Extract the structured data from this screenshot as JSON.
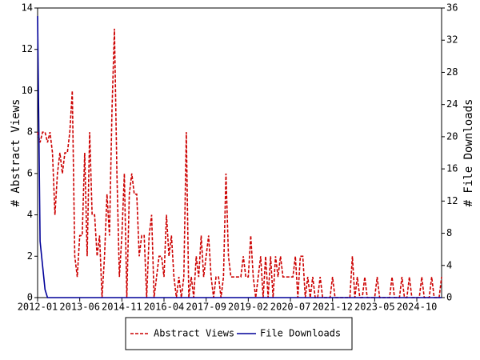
{
  "chart_data": {
    "type": "line",
    "y_label": "# Abstract Views",
    "y2_label": "# File Downloads",
    "x": [
      "2012-01",
      "2012-02",
      "2012-03",
      "2012-04",
      "2012-05",
      "2012-06",
      "2012-07",
      "2012-08",
      "2012-09",
      "2012-10",
      "2012-11",
      "2012-12",
      "2013-01",
      "2013-02",
      "2013-03",
      "2013-04",
      "2013-05",
      "2013-06",
      "2013-07",
      "2013-08",
      "2013-09",
      "2013-10",
      "2013-11",
      "2013-12",
      "2014-01",
      "2014-02",
      "2014-03",
      "2014-04",
      "2014-05",
      "2014-06",
      "2014-07",
      "2014-08",
      "2014-09",
      "2014-10",
      "2014-11",
      "2014-12",
      "2015-01",
      "2015-02",
      "2015-03",
      "2015-04",
      "2015-05",
      "2015-06",
      "2015-07",
      "2015-08",
      "2015-09",
      "2015-10",
      "2015-11",
      "2015-12",
      "2016-01",
      "2016-02",
      "2016-03",
      "2016-04",
      "2016-05",
      "2016-06",
      "2016-07",
      "2016-08",
      "2016-09",
      "2016-10",
      "2016-11",
      "2016-12",
      "2017-01",
      "2017-02",
      "2017-03",
      "2017-04",
      "2017-05",
      "2017-06",
      "2017-07",
      "2017-08",
      "2017-09",
      "2017-10",
      "2017-11",
      "2017-12",
      "2018-01",
      "2018-02",
      "2018-03",
      "2018-04",
      "2018-05",
      "2018-06",
      "2018-07",
      "2018-08",
      "2018-09",
      "2018-10",
      "2018-11",
      "2018-12",
      "2019-01",
      "2019-02",
      "2019-03",
      "2019-04",
      "2019-05",
      "2019-06",
      "2019-07",
      "2019-08",
      "2019-09",
      "2019-10",
      "2019-11",
      "2019-12",
      "2020-01",
      "2020-02",
      "2020-03",
      "2020-04",
      "2020-05",
      "2020-06",
      "2020-07",
      "2020-08",
      "2020-09",
      "2020-10",
      "2020-11",
      "2020-12",
      "2021-01",
      "2021-02",
      "2021-03",
      "2021-04",
      "2021-05",
      "2021-06",
      "2021-07",
      "2021-08",
      "2021-09",
      "2021-10",
      "2021-11",
      "2021-12",
      "2022-01",
      "2022-02",
      "2022-03",
      "2022-04",
      "2022-05",
      "2022-06",
      "2022-07",
      "2022-08",
      "2022-09",
      "2022-10",
      "2022-11",
      "2022-12",
      "2023-01",
      "2023-02",
      "2023-03",
      "2023-04",
      "2023-05",
      "2023-06",
      "2023-07",
      "2023-08",
      "2023-09",
      "2023-10",
      "2023-11",
      "2023-12",
      "2024-01",
      "2024-02",
      "2024-03",
      "2024-04",
      "2024-05",
      "2024-06",
      "2024-07",
      "2024-08",
      "2024-09",
      "2024-10",
      "2024-11",
      "2024-12",
      "2025-01",
      "2025-02",
      "2025-03",
      "2025-04",
      "2025-05",
      "2025-06",
      "2025-07",
      "2025-08"
    ],
    "xticks": [
      "2012-01",
      "2013-06",
      "2014-11",
      "2016-04",
      "2017-09",
      "2019-02",
      "2020-07",
      "2021-12",
      "2023-05",
      "2024-10"
    ],
    "ylim": [
      0,
      14
    ],
    "yticks": [
      0,
      2,
      4,
      6,
      8,
      10,
      12,
      14
    ],
    "y2lim": [
      0,
      36
    ],
    "y2ticks": [
      0,
      4,
      8,
      12,
      16,
      20,
      24,
      28,
      32,
      36
    ],
    "legend": "bottom",
    "series": [
      {
        "name": "Abstract Views",
        "color": "#cc0000",
        "dashed": true,
        "values": [
          8,
          7.5,
          8,
          8,
          7.5,
          8,
          7,
          4,
          6,
          7,
          6,
          7,
          7,
          8,
          10,
          2,
          1,
          3,
          3,
          7,
          2,
          8,
          4,
          4,
          2,
          3,
          0,
          2,
          5,
          3,
          9,
          13,
          6,
          1,
          3,
          6,
          0,
          5,
          6,
          5,
          5,
          2,
          3,
          3,
          0,
          3,
          4,
          0,
          1,
          2,
          2,
          1,
          4,
          2,
          3,
          1,
          0,
          1,
          0,
          1,
          8,
          0,
          1,
          0,
          2,
          1,
          3,
          1,
          2,
          3,
          1,
          0,
          1,
          1,
          0,
          1,
          6,
          2,
          1,
          1,
          1,
          1,
          1,
          2,
          1,
          1,
          3,
          1,
          0,
          1,
          2,
          0,
          2,
          0,
          2,
          0,
          2,
          1,
          2,
          1,
          1,
          1,
          1,
          1,
          2,
          0,
          2,
          2,
          0,
          1,
          0,
          1,
          0,
          0,
          1,
          0,
          0,
          0,
          0,
          1,
          0,
          0,
          0,
          0,
          0,
          0,
          0,
          2,
          0,
          1,
          0,
          0,
          1,
          0,
          0,
          0,
          0,
          1,
          0,
          0,
          0,
          0,
          0,
          1,
          0,
          0,
          0,
          1,
          0,
          0,
          1,
          0,
          0,
          0,
          0,
          1,
          0,
          0,
          0,
          1,
          0,
          0,
          0,
          1
        ]
      },
      {
        "name": "File Downloads",
        "color": "#000099",
        "dashed": false,
        "axis": "y2",
        "values": [
          35,
          7,
          4,
          1,
          0,
          0,
          0,
          0,
          0,
          0,
          0,
          0,
          0,
          0,
          0,
          0,
          0,
          0,
          0,
          0,
          0,
          0,
          0,
          0,
          0,
          0,
          0,
          0,
          0,
          0,
          0,
          0,
          0,
          0,
          0,
          0,
          0,
          0,
          0,
          0,
          0,
          0,
          0,
          0,
          0,
          0,
          0,
          0,
          0,
          0,
          0,
          0,
          0,
          0,
          0,
          0,
          0,
          0,
          0,
          0,
          0,
          0,
          0,
          0,
          0,
          0,
          0,
          0,
          0,
          0,
          0,
          0,
          0,
          0,
          0,
          0,
          0,
          0,
          0,
          0,
          0,
          0,
          0,
          0,
          0,
          0,
          0,
          0,
          0,
          0,
          0,
          0,
          0,
          0,
          0,
          0,
          0,
          0,
          0,
          0,
          0,
          0,
          0,
          0,
          0,
          0,
          0,
          0,
          0,
          0,
          0,
          0,
          0,
          0,
          0,
          0,
          0,
          0,
          0,
          0,
          0,
          0,
          0,
          0,
          0,
          0,
          0,
          0,
          0,
          0,
          0,
          0,
          0,
          0,
          0,
          0,
          0,
          0,
          0,
          0,
          0,
          0,
          0,
          0,
          0,
          0,
          0,
          0,
          0,
          0,
          0,
          0,
          0,
          0,
          0,
          0,
          0,
          0,
          0,
          0,
          0,
          0,
          0,
          0
        ]
      }
    ]
  }
}
